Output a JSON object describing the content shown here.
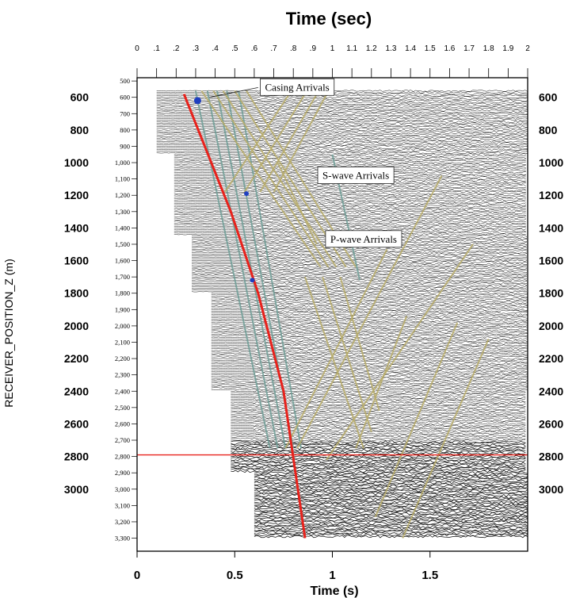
{
  "chart_data": {
    "type": "seismic-section",
    "top_title": "Time (sec)",
    "bottom_title": "Time (s)",
    "ylabel": "RECEIVER_POSITION_Z (m)",
    "top_ticks": [
      0,
      0.1,
      0.2,
      0.3,
      0.4,
      0.5,
      0.6,
      0.7,
      0.8,
      0.9,
      1,
      1.1,
      1.2,
      1.3,
      1.4,
      1.5,
      1.6,
      1.7,
      1.8,
      1.9,
      2
    ],
    "top_tick_labels": [
      "0",
      ".1",
      ".2",
      ".3",
      ".4",
      ".5",
      ".6",
      ".7",
      ".8",
      ".9",
      "1",
      "1.1",
      "1.2",
      "1.3",
      "1.4",
      "1.5",
      "1.6",
      "1.7",
      "1.8",
      "1.9",
      "2"
    ],
    "bottom_ticks": [
      0,
      0.5,
      1,
      1.5
    ],
    "bottom_tick_labels": [
      "0",
      "0.5",
      "1",
      "1.5"
    ],
    "xlim": [
      0,
      2
    ],
    "ylim": [
      480,
      3380
    ],
    "left_ticks": [
      600,
      800,
      1000,
      1200,
      1400,
      1600,
      1800,
      2000,
      2200,
      2400,
      2600,
      2800,
      3000
    ],
    "left_tick_labels": [
      "600",
      "800",
      "1000",
      "1200",
      "1400",
      "1600",
      "1800",
      "2000",
      "2200",
      "2400",
      "2600",
      "2800",
      "3000"
    ],
    "right_ticks": [
      600,
      800,
      1000,
      1200,
      1400,
      1600,
      1800,
      2000,
      2200,
      2400,
      2600,
      2800,
      3000
    ],
    "right_tick_labels": [
      "600",
      "800",
      "1000",
      "1200",
      "1400",
      "1600",
      "1800",
      "2000",
      "2200",
      "2400",
      "2600",
      "2800",
      "3000"
    ],
    "inner_ticks": [
      500,
      600,
      700,
      800,
      900,
      1000,
      1100,
      1200,
      1300,
      1400,
      1500,
      1600,
      1700,
      1800,
      1900,
      2000,
      2100,
      2200,
      2300,
      2400,
      2500,
      2600,
      2700,
      2800,
      2900,
      3000,
      3100,
      3200,
      3300
    ],
    "inner_tick_labels": [
      "500",
      "600",
      "700",
      "800",
      "900",
      "1,000",
      "1,100",
      "1,200",
      "1,300",
      "1,400",
      "1,500",
      "1,600",
      "1,700",
      "1,800",
      "1,900",
      "2,000",
      "2,100",
      "2,200",
      "2,300",
      "2,400",
      "2,500",
      "2,600",
      "2,700",
      "2,800",
      "2,900",
      "3,000",
      "3,100",
      "3,200",
      "3,300"
    ],
    "annotations": [
      {
        "text": "Casing Arrivals",
        "t": 0.82,
        "z": 535
      },
      {
        "text": "S-wave Arrivals",
        "t": 1.12,
        "z": 1075
      },
      {
        "text": "P-wave Arrivals",
        "t": 1.16,
        "z": 1465
      }
    ],
    "first_break_pick": {
      "color": "#e8221c",
      "points": [
        [
          0.24,
          580
        ],
        [
          0.48,
          1300
        ],
        [
          0.62,
          1800
        ],
        [
          0.75,
          2400
        ],
        [
          0.86,
          3300
        ]
      ]
    },
    "horizon_line": {
      "z": 2790,
      "color": "#e8221c"
    },
    "colors": {
      "downgoing": "#6e9e96",
      "upgoing": "#b7ab68",
      "traces": "#000000",
      "pick": "#e8221c"
    }
  }
}
